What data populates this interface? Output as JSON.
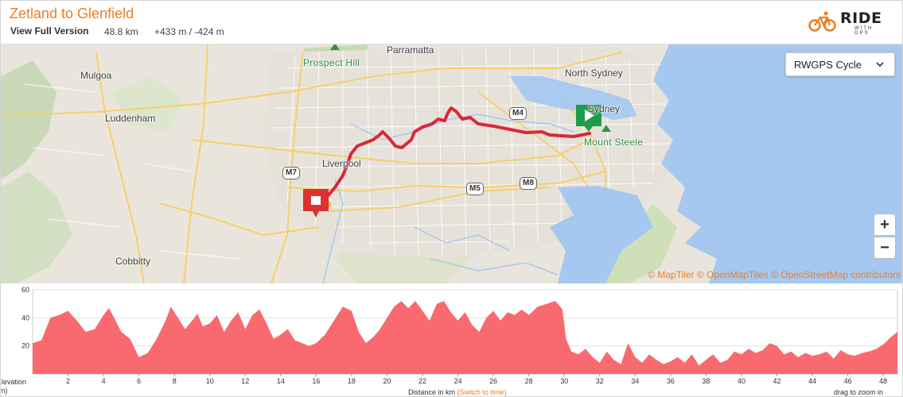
{
  "header": {
    "title": "Zetland to Glenfield",
    "view_full": "View Full Version",
    "distance": "48.8 km",
    "elevation": "+433 m / -424 m"
  },
  "logo": {
    "text": "RIDE",
    "subtext": "WITH GPS"
  },
  "map": {
    "style_select": "RWGPS Cycle",
    "zoom_in": "+",
    "zoom_out": "−",
    "places": {
      "parramatta": "Parramatta",
      "prospect_hill": "Prospect Hill",
      "mulgoa": "Mulgoa",
      "luddenham": "Luddenham",
      "north_sydney": "North Sydney",
      "sydney": "Sydney",
      "mount_steele": "Mount Steele",
      "liverpool": "Liverpool",
      "cobbitty": "Cobbitty"
    },
    "shields": {
      "m4": "M4",
      "m7": "M7",
      "m5": "M5",
      "m8": "M8"
    },
    "attribution": {
      "maptiler": "© MapTiler",
      "openmaptiles": "© OpenMapTiles",
      "osm": "© OpenStreetMap contributors"
    },
    "colors": {
      "route": "#d8283a",
      "water": "#a6c8f0",
      "land": "#eae5dc",
      "start": "#1f9b4c",
      "end": "#e03131"
    }
  },
  "elevation": {
    "ylabel_line1": "Elevation",
    "ylabel_line2": "(m)",
    "xlabel": "Distance in km",
    "switch_label": "(Switch to time)",
    "drag_hint": "drag to zoom in",
    "y_ticks": [
      "60",
      "40",
      "20"
    ],
    "x_ticks": [
      "2",
      "4",
      "6",
      "8",
      "10",
      "12",
      "14",
      "16",
      "18",
      "20",
      "22",
      "24",
      "26",
      "28",
      "30",
      "32",
      "34",
      "36",
      "38",
      "40",
      "42",
      "44",
      "46",
      "48"
    ],
    "fill_color": "#f86a6f",
    "profile": [
      [
        0,
        22
      ],
      [
        0.5,
        24
      ],
      [
        1,
        40
      ],
      [
        1.5,
        42
      ],
      [
        2,
        45
      ],
      [
        2.5,
        38
      ],
      [
        3,
        30
      ],
      [
        3.5,
        32
      ],
      [
        4,
        42
      ],
      [
        4.3,
        47
      ],
      [
        4.6,
        40
      ],
      [
        5,
        30
      ],
      [
        5.5,
        25
      ],
      [
        6,
        12
      ],
      [
        6.5,
        15
      ],
      [
        7,
        25
      ],
      [
        7.5,
        38
      ],
      [
        7.8,
        48
      ],
      [
        8.2,
        40
      ],
      [
        8.6,
        32
      ],
      [
        9,
        38
      ],
      [
        9.3,
        43
      ],
      [
        9.6,
        34
      ],
      [
        10,
        36
      ],
      [
        10.4,
        42
      ],
      [
        10.8,
        30
      ],
      [
        11.2,
        38
      ],
      [
        11.6,
        44
      ],
      [
        12,
        32
      ],
      [
        12.4,
        42
      ],
      [
        12.8,
        46
      ],
      [
        13.2,
        36
      ],
      [
        13.6,
        25
      ],
      [
        14,
        28
      ],
      [
        14.4,
        32
      ],
      [
        14.8,
        24
      ],
      [
        15.2,
        22
      ],
      [
        15.6,
        20
      ],
      [
        16,
        22
      ],
      [
        16.5,
        28
      ],
      [
        17,
        38
      ],
      [
        17.5,
        48
      ],
      [
        18,
        45
      ],
      [
        18.4,
        30
      ],
      [
        18.8,
        22
      ],
      [
        19.2,
        26
      ],
      [
        19.6,
        32
      ],
      [
        20,
        40
      ],
      [
        20.4,
        48
      ],
      [
        20.8,
        52
      ],
      [
        21.2,
        47
      ],
      [
        21.6,
        52
      ],
      [
        22,
        45
      ],
      [
        22.4,
        38
      ],
      [
        22.8,
        50
      ],
      [
        23.2,
        52
      ],
      [
        23.6,
        44
      ],
      [
        24,
        38
      ],
      [
        24.4,
        44
      ],
      [
        24.8,
        35
      ],
      [
        25.2,
        30
      ],
      [
        25.6,
        40
      ],
      [
        26,
        45
      ],
      [
        26.4,
        38
      ],
      [
        26.8,
        44
      ],
      [
        27.2,
        42
      ],
      [
        27.6,
        46
      ],
      [
        28,
        42
      ],
      [
        28.5,
        48
      ],
      [
        29,
        50
      ],
      [
        29.5,
        52
      ],
      [
        29.9,
        46
      ],
      [
        30.1,
        25
      ],
      [
        30.4,
        16
      ],
      [
        30.8,
        14
      ],
      [
        31.2,
        18
      ],
      [
        31.6,
        12
      ],
      [
        32,
        8
      ],
      [
        32.4,
        16
      ],
      [
        32.8,
        10
      ],
      [
        33.2,
        7
      ],
      [
        33.6,
        22
      ],
      [
        34,
        12
      ],
      [
        34.4,
        8
      ],
      [
        34.8,
        14
      ],
      [
        35.2,
        10
      ],
      [
        35.6,
        7
      ],
      [
        36,
        9
      ],
      [
        36.4,
        12
      ],
      [
        36.8,
        8
      ],
      [
        37.2,
        14
      ],
      [
        37.6,
        6
      ],
      [
        38,
        10
      ],
      [
        38.4,
        14
      ],
      [
        38.8,
        8
      ],
      [
        39.2,
        10
      ],
      [
        39.6,
        16
      ],
      [
        40,
        14
      ],
      [
        40.4,
        18
      ],
      [
        40.8,
        15
      ],
      [
        41.2,
        17
      ],
      [
        41.6,
        22
      ],
      [
        42,
        20
      ],
      [
        42.4,
        14
      ],
      [
        42.8,
        16
      ],
      [
        43.2,
        12
      ],
      [
        43.6,
        15
      ],
      [
        44,
        13
      ],
      [
        44.4,
        14
      ],
      [
        44.8,
        16
      ],
      [
        45.2,
        11
      ],
      [
        45.6,
        17
      ],
      [
        46,
        14
      ],
      [
        46.4,
        13
      ],
      [
        46.8,
        15
      ],
      [
        47.2,
        16
      ],
      [
        47.6,
        18
      ],
      [
        48,
        21
      ],
      [
        48.4,
        26
      ],
      [
        48.8,
        30
      ]
    ]
  }
}
